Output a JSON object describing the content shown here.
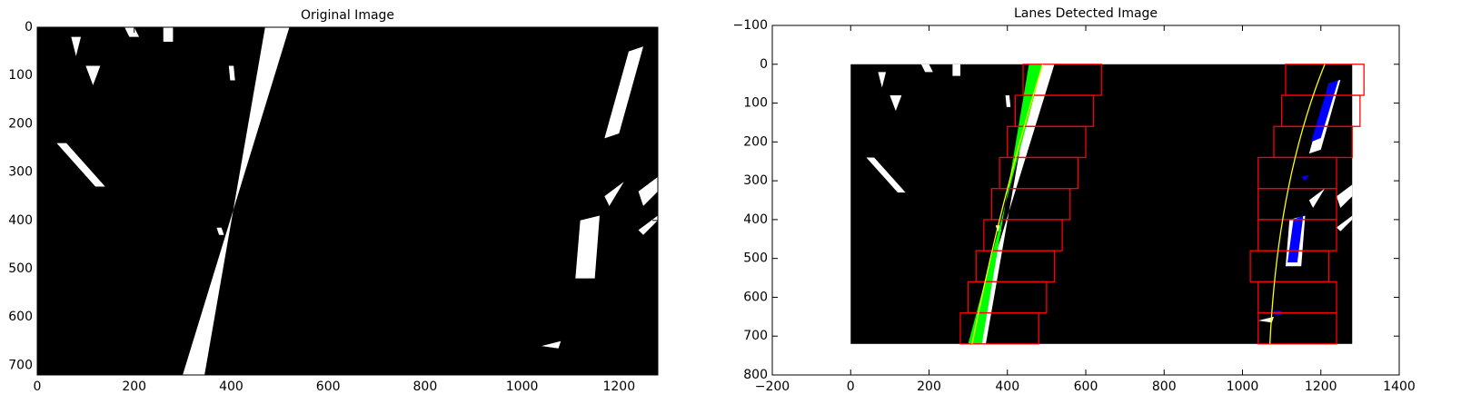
{
  "chart_data": [
    {
      "type": "image",
      "title": "Original Image",
      "xlim": [
        0,
        1280
      ],
      "ylim": [
        720,
        0
      ],
      "xticks": [
        0,
        200,
        400,
        600,
        800,
        1000,
        1200
      ],
      "yticks": [
        0,
        100,
        200,
        300,
        400,
        500,
        600,
        700
      ]
    },
    {
      "type": "image",
      "title": "Lanes Detected Image",
      "xlim": [
        -200,
        1400
      ],
      "ylim": [
        800,
        -100
      ],
      "xticks": [
        {
          "value": -200,
          "label": "−200"
        },
        0,
        200,
        400,
        600,
        800,
        1000,
        1200,
        1400
      ],
      "yticks": [
        {
          "value": -100,
          "label": "−100"
        },
        0,
        100,
        200,
        300,
        400,
        500,
        600,
        700,
        800
      ]
    }
  ]
}
